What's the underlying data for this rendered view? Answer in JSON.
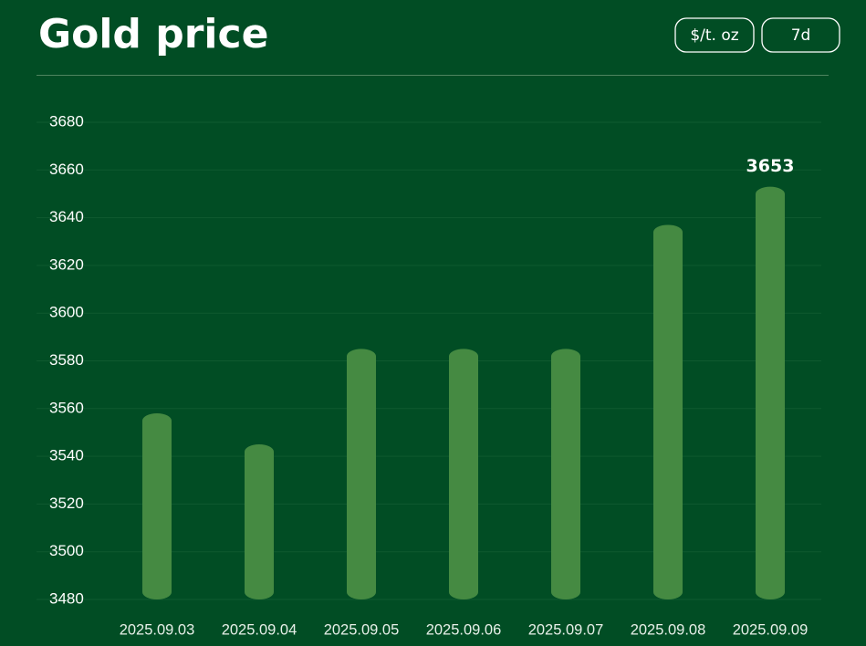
{
  "header": {
    "title": "Gold price",
    "buttons": [
      "$/t. oz",
      "7d"
    ]
  },
  "chart_data": {
    "type": "bar",
    "categories": [
      "2025.09.03",
      "2025.09.04",
      "2025.09.05",
      "2025.09.06",
      "2025.09.07",
      "2025.09.08",
      "2025.09.09"
    ],
    "values": [
      3558,
      3545,
      3585,
      3585,
      3585,
      3637,
      3653
    ],
    "color": "#458a42",
    "ylim": [
      3480,
      3680
    ],
    "yticks": [
      3480,
      3500,
      3520,
      3540,
      3560,
      3580,
      3600,
      3620,
      3640,
      3660,
      3680
    ],
    "grid": true
  }
}
